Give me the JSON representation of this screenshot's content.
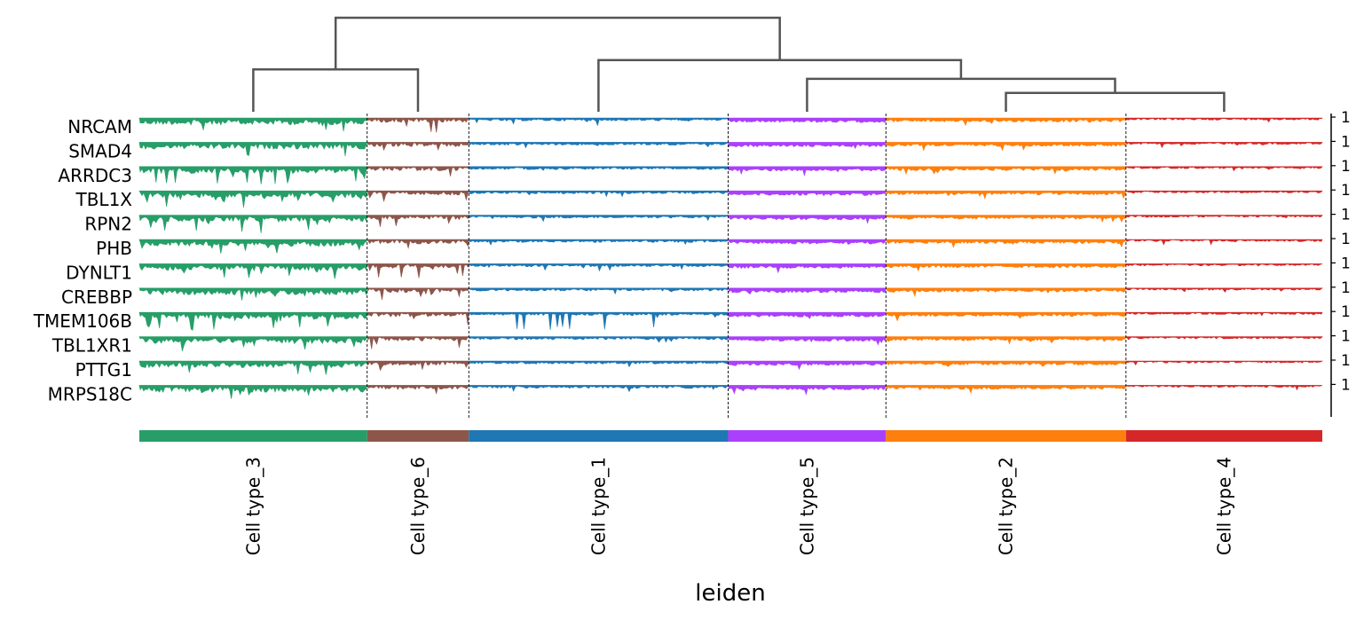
{
  "chart_data": {
    "type": "area",
    "xlabel": "leiden",
    "genes": [
      "NRCAM",
      "SMAD4",
      "ARRDC3",
      "TBL1X",
      "RPN2",
      "PHB",
      "DYNLT1",
      "CREBBP",
      "TMEM106B",
      "TBL1XR1",
      "PTTG1",
      "MRPS18C"
    ],
    "right_tick_labels": [
      "1",
      "1",
      "1",
      "1",
      "1",
      "1",
      "1",
      "1",
      "1",
      "1",
      "1",
      "1"
    ],
    "groups": [
      {
        "label": "Cell type_3",
        "color": "#279e68",
        "n_cells": 130
      },
      {
        "label": "Cell type_6",
        "color": "#8c564b",
        "n_cells": 58
      },
      {
        "label": "Cell type_1",
        "color": "#1f77b4",
        "n_cells": 148
      },
      {
        "label": "Cell type_5",
        "color": "#aa40fc",
        "n_cells": 90
      },
      {
        "label": "Cell type_2",
        "color": "#ff7f0e",
        "n_cells": 137
      },
      {
        "label": "Cell type_4",
        "color": "#d62728",
        "n_cells": 112
      }
    ],
    "track_profile": {
      "mean_level": [
        0.55,
        0.85,
        0.75,
        0.4,
        0.55,
        0.9
      ],
      "variability": [
        0.75,
        0.55,
        0.3,
        0.35,
        0.35,
        0.25
      ],
      "dips": {
        "NRCAM": {
          "Cell type_6": 0.85
        },
        "ARRDC3": {
          "Cell type_3": 0.9,
          "Cell type_6": 0.9
        },
        "TMEM106B": {
          "Cell type_3": 0.9,
          "Cell type_1": 0.9
        },
        "DYNLT1": {
          "Cell type_6": 0.7
        },
        "TBL1X": {
          "Cell type_3": 0.6
        }
      }
    },
    "dendrogram": {
      "leaves": [
        "Cell type_3",
        "Cell type_6",
        "Cell type_1",
        "Cell type_5",
        "Cell type_2",
        "Cell type_4"
      ],
      "merges": [
        {
          "left": "Cell type_2",
          "right": "Cell type_4",
          "height": 0.2
        },
        {
          "left": "Cell type_5",
          "right": "Cell type_2+Cell type_4",
          "height": 0.35
        },
        {
          "left": "Cell type_3",
          "right": "Cell type_6",
          "height": 0.45
        },
        {
          "left": "Cell type_1",
          "right": "Cell type_5+Cell type_2+Cell type_4",
          "height": 0.55
        },
        {
          "left": "Cell type_3+Cell type_6",
          "right": "Cell type_1+Cell type_5+Cell type_2+Cell type_4",
          "height": 1.0
        }
      ]
    },
    "grid": false,
    "legend": "none"
  }
}
